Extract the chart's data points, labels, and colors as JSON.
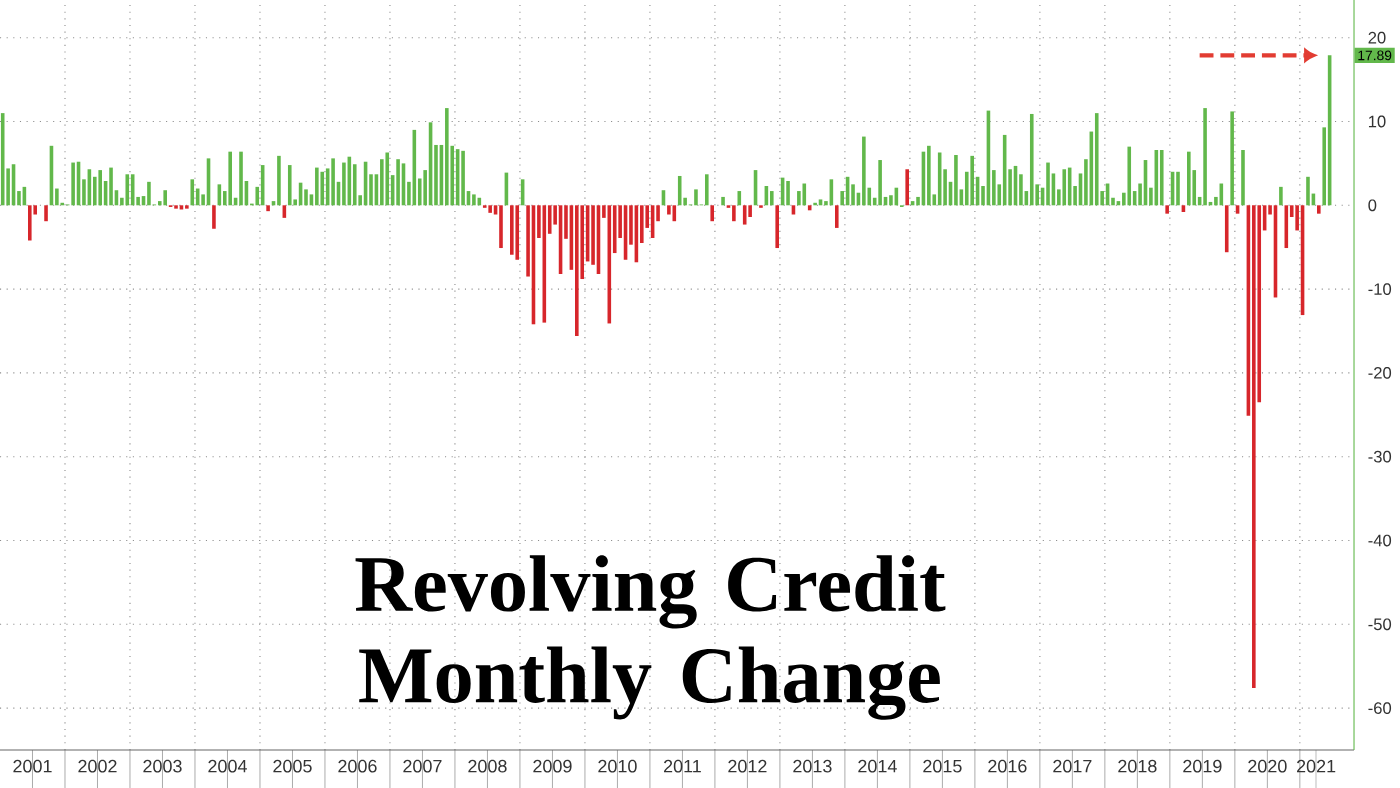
{
  "chart_data": {
    "type": "bar",
    "title": "Revolving Credit Monthly Change",
    "x": [
      "2001-01",
      "2001-02",
      "2001-03",
      "2001-04",
      "2001-05",
      "2001-06",
      "2001-07",
      "2001-08",
      "2001-09",
      "2001-10",
      "2001-11",
      "2001-12",
      "2002-01",
      "2002-02",
      "2002-03",
      "2002-04",
      "2002-05",
      "2002-06",
      "2002-07",
      "2002-08",
      "2002-09",
      "2002-10",
      "2002-11",
      "2002-12",
      "2003-01",
      "2003-02",
      "2003-03",
      "2003-04",
      "2003-05",
      "2003-06",
      "2003-07",
      "2003-08",
      "2003-09",
      "2003-10",
      "2003-11",
      "2003-12",
      "2004-01",
      "2004-02",
      "2004-03",
      "2004-04",
      "2004-05",
      "2004-06",
      "2004-07",
      "2004-08",
      "2004-09",
      "2004-10",
      "2004-11",
      "2004-12",
      "2005-01",
      "2005-02",
      "2005-03",
      "2005-04",
      "2005-05",
      "2005-06",
      "2005-07",
      "2005-08",
      "2005-09",
      "2005-10",
      "2005-11",
      "2005-12",
      "2006-01",
      "2006-02",
      "2006-03",
      "2006-04",
      "2006-05",
      "2006-06",
      "2006-07",
      "2006-08",
      "2006-09",
      "2006-10",
      "2006-11",
      "2006-12",
      "2007-01",
      "2007-02",
      "2007-03",
      "2007-04",
      "2007-05",
      "2007-06",
      "2007-07",
      "2007-08",
      "2007-09",
      "2007-10",
      "2007-11",
      "2007-12",
      "2008-01",
      "2008-02",
      "2008-03",
      "2008-04",
      "2008-05",
      "2008-06",
      "2008-07",
      "2008-08",
      "2008-09",
      "2008-10",
      "2008-11",
      "2008-12",
      "2009-01",
      "2009-02",
      "2009-03",
      "2009-04",
      "2009-05",
      "2009-06",
      "2009-07",
      "2009-08",
      "2009-09",
      "2009-10",
      "2009-11",
      "2009-12",
      "2010-01",
      "2010-02",
      "2010-03",
      "2010-04",
      "2010-05",
      "2010-06",
      "2010-07",
      "2010-08",
      "2010-09",
      "2010-10",
      "2010-11",
      "2010-12",
      "2011-01",
      "2011-02",
      "2011-03",
      "2011-04",
      "2011-05",
      "2011-06",
      "2011-07",
      "2011-08",
      "2011-09",
      "2011-10",
      "2011-11",
      "2011-12",
      "2012-01",
      "2012-02",
      "2012-03",
      "2012-04",
      "2012-05",
      "2012-06",
      "2012-07",
      "2012-08",
      "2012-09",
      "2012-10",
      "2012-11",
      "2012-12",
      "2013-01",
      "2013-02",
      "2013-03",
      "2013-04",
      "2013-05",
      "2013-06",
      "2013-07",
      "2013-08",
      "2013-09",
      "2013-10",
      "2013-11",
      "2013-12",
      "2014-01",
      "2014-02",
      "2014-03",
      "2014-04",
      "2014-05",
      "2014-06",
      "2014-07",
      "2014-08",
      "2014-09",
      "2014-10",
      "2014-11",
      "2014-12",
      "2015-01",
      "2015-02",
      "2015-03",
      "2015-04",
      "2015-05",
      "2015-06",
      "2015-07",
      "2015-08",
      "2015-09",
      "2015-10",
      "2015-11",
      "2015-12",
      "2016-01",
      "2016-02",
      "2016-03",
      "2016-04",
      "2016-05",
      "2016-06",
      "2016-07",
      "2016-08",
      "2016-09",
      "2016-10",
      "2016-11",
      "2016-12",
      "2017-01",
      "2017-02",
      "2017-03",
      "2017-04",
      "2017-05",
      "2017-06",
      "2017-07",
      "2017-08",
      "2017-09",
      "2017-10",
      "2017-11",
      "2017-12",
      "2018-01",
      "2018-02",
      "2018-03",
      "2018-04",
      "2018-05",
      "2018-06",
      "2018-07",
      "2018-08",
      "2018-09",
      "2018-10",
      "2018-11",
      "2018-12",
      "2019-01",
      "2019-02",
      "2019-03",
      "2019-04",
      "2019-05",
      "2019-06",
      "2019-07",
      "2019-08",
      "2019-09",
      "2019-10",
      "2019-11",
      "2019-12",
      "2020-01",
      "2020-02",
      "2020-03",
      "2020-04",
      "2020-05",
      "2020-06",
      "2020-07",
      "2020-08",
      "2020-09",
      "2020-10",
      "2020-11",
      "2020-12",
      "2021-01",
      "2021-02",
      "2021-03",
      "2021-04",
      "2021-05",
      "2021-06"
    ],
    "values": [
      11,
      4.4,
      4.9,
      1.7,
      2.2,
      -4.2,
      -1.1,
      null,
      -1.9,
      7.1,
      2,
      0.3,
      0.1,
      5.1,
      5.2,
      3.1,
      4.3,
      3.4,
      4.2,
      2.9,
      4.5,
      1.8,
      0.9,
      3.7,
      3.7,
      1,
      1.1,
      2.8,
      0.1,
      0.5,
      1.8,
      -0.2,
      -0.4,
      -0.5,
      -0.4,
      3.1,
      2,
      1.3,
      5.6,
      -2.8,
      2.5,
      1.7,
      6.4,
      0.9,
      6.4,
      2.9,
      0.2,
      2.2,
      4.8,
      -0.7,
      0.5,
      5.9,
      -1.5,
      4.8,
      0.7,
      2.7,
      1.9,
      1.3,
      4.5,
      4,
      4.4,
      5.6,
      2.8,
      5.1,
      5.8,
      4.9,
      1.2,
      5.2,
      3.7,
      3.7,
      5.5,
      6.3,
      3.6,
      5.5,
      5,
      2.8,
      9,
      3.2,
      4.2,
      9.9,
      7.2,
      7.2,
      11.6,
      7.1,
      6.7,
      6.5,
      1.7,
      1.3,
      0.9,
      -0.3,
      -0.9,
      -1.1,
      -5.1,
      3.9,
      -5.9,
      -6.5,
      3.1,
      -8.5,
      -14.2,
      -3.9,
      -14,
      -3.4,
      -2.3,
      -8.2,
      -4,
      -7.7,
      -15.6,
      -8.8,
      -6.7,
      -7.1,
      -8.2,
      -1.5,
      -14.1,
      -5.7,
      -3.9,
      -6.5,
      -4.7,
      -6.8,
      -4.5,
      -2.7,
      -3.9,
      -1.9,
      1.8,
      -1.1,
      -1.9,
      3.5,
      0.9,
      0.1,
      1.9,
      0.1,
      3.7,
      -1.9,
      null,
      1,
      -0.3,
      -1.9,
      1.7,
      -2.3,
      -1.4,
      4.2,
      -0.3,
      2.3,
      1.7,
      -5.1,
      3.3,
      2.9,
      -1.1,
      1.7,
      2.6,
      -0.6,
      0.3,
      0.7,
      0.5,
      3.1,
      -2.7,
      1.7,
      3.4,
      2.5,
      1.5,
      8.2,
      2.1,
      0.9,
      5.4,
      1,
      1.2,
      2.1,
      -0.2,
      4.3,
      0.5,
      1,
      6.4,
      7.1,
      1.3,
      6.3,
      4.3,
      2.8,
      6,
      1.9,
      4,
      5.9,
      3.4,
      2.3,
      11.3,
      4.2,
      2.5,
      8.4,
      4.3,
      4.7,
      3.7,
      1.7,
      10.9,
      2.5,
      2.1,
      5.1,
      3.8,
      1.9,
      4.3,
      4.5,
      2.3,
      3.8,
      5.5,
      8.8,
      11,
      1.7,
      2.6,
      0.9,
      0.5,
      1.5,
      7,
      1.7,
      2.6,
      5.4,
      2.1,
      6.6,
      6.6,
      -1,
      4,
      4,
      -0.8,
      6.4,
      4.2,
      1,
      11.6,
      0.4,
      1,
      2.6,
      -5.6,
      11.2,
      -1,
      6.6,
      -25.1,
      -57.6,
      -23.5,
      -3,
      -1.1,
      -11,
      2.2,
      -5.1,
      -1.4,
      -3,
      -13.1,
      3.4,
      1.4,
      -1,
      9.3,
      17.89
    ],
    "colors": [
      "#62b84b",
      "#62b84b",
      "#62b84b",
      "#62b84b",
      "#62b84b",
      "#d7262b",
      "#d7262b",
      "#62b84b",
      "#d7262b",
      "#62b84b",
      "#62b84b",
      "#62b84b",
      "#62b84b",
      "#62b84b",
      "#62b84b",
      "#62b84b",
      "#62b84b",
      "#62b84b",
      "#62b84b",
      "#62b84b",
      "#62b84b",
      "#62b84b",
      "#62b84b",
      "#62b84b",
      "#62b84b",
      "#62b84b",
      "#62b84b",
      "#62b84b",
      "#62b84b",
      "#62b84b",
      "#62b84b",
      "#d7262b",
      "#d7262b",
      "#d7262b",
      "#d7262b",
      "#62b84b",
      "#62b84b",
      "#62b84b",
      "#62b84b",
      "#d7262b",
      "#62b84b",
      "#62b84b",
      "#62b84b",
      "#62b84b",
      "#62b84b",
      "#62b84b",
      "#62b84b",
      "#62b84b",
      "#62b84b",
      "#d7262b",
      "#62b84b",
      "#62b84b",
      "#d7262b",
      "#62b84b",
      "#62b84b",
      "#62b84b",
      "#62b84b",
      "#62b84b",
      "#62b84b",
      "#62b84b",
      "#62b84b",
      "#62b84b",
      "#62b84b",
      "#62b84b",
      "#62b84b",
      "#62b84b",
      "#62b84b",
      "#62b84b",
      "#62b84b",
      "#62b84b",
      "#62b84b",
      "#62b84b",
      "#62b84b",
      "#62b84b",
      "#62b84b",
      "#62b84b",
      "#62b84b",
      "#62b84b",
      "#62b84b",
      "#62b84b",
      "#62b84b",
      "#62b84b",
      "#62b84b",
      "#62b84b",
      "#62b84b",
      "#62b84b",
      "#62b84b",
      "#62b84b",
      "#62b84b",
      "#d7262b",
      "#d7262b",
      "#d7262b",
      "#d7262b",
      "#62b84b",
      "#d7262b",
      "#d7262b",
      "#62b84b",
      "#d7262b",
      "#d7262b",
      "#d7262b",
      "#d7262b",
      "#d7262b",
      "#d7262b",
      "#d7262b",
      "#d7262b",
      "#d7262b",
      "#d7262b",
      "#d7262b",
      "#d7262b",
      "#d7262b",
      "#d7262b",
      "#d7262b",
      "#d7262b",
      "#d7262b",
      "#d7262b",
      "#d7262b",
      "#d7262b",
      "#d7262b",
      "#d7262b",
      "#d7262b",
      "#d7262b",
      "#d7262b",
      "#62b84b",
      "#d7262b",
      "#d7262b",
      "#62b84b",
      "#62b84b",
      "#62b84b",
      "#62b84b",
      "#62b84b",
      "#62b84b",
      "#d7262b",
      "#62b84b",
      "#62b84b",
      "#d7262b",
      "#d7262b",
      "#62b84b",
      "#d7262b",
      "#d7262b",
      "#62b84b",
      "#d7262b",
      "#62b84b",
      "#62b84b",
      "#d7262b",
      "#62b84b",
      "#62b84b",
      "#d7262b",
      "#62b84b",
      "#62b84b",
      "#d7262b",
      "#62b84b",
      "#62b84b",
      "#62b84b",
      "#62b84b",
      "#d7262b",
      "#62b84b",
      "#62b84b",
      "#62b84b",
      "#62b84b",
      "#62b84b",
      "#62b84b",
      "#62b84b",
      "#62b84b",
      "#62b84b",
      "#62b84b",
      "#62b84b",
      "#62b84b",
      "#d7262b",
      "#62b84b",
      "#62b84b",
      "#62b84b",
      "#62b84b",
      "#62b84b",
      "#62b84b",
      "#62b84b",
      "#62b84b",
      "#62b84b",
      "#62b84b",
      "#62b84b",
      "#62b84b",
      "#62b84b",
      "#62b84b",
      "#62b84b",
      "#62b84b",
      "#62b84b",
      "#62b84b",
      "#62b84b",
      "#62b84b",
      "#62b84b",
      "#62b84b",
      "#62b84b",
      "#62b84b",
      "#62b84b",
      "#62b84b",
      "#62b84b",
      "#62b84b",
      "#62b84b",
      "#62b84b",
      "#62b84b",
      "#62b84b",
      "#62b84b",
      "#62b84b",
      "#62b84b",
      "#62b84b",
      "#62b84b",
      "#62b84b",
      "#62b84b",
      "#62b84b",
      "#62b84b",
      "#62b84b",
      "#62b84b",
      "#62b84b",
      "#62b84b",
      "#62b84b",
      "#62b84b",
      "#d7262b",
      "#62b84b",
      "#62b84b",
      "#d7262b",
      "#62b84b",
      "#62b84b",
      "#62b84b",
      "#62b84b",
      "#62b84b",
      "#62b84b",
      "#62b84b",
      "#d7262b",
      "#62b84b",
      "#d7262b",
      "#62b84b",
      "#d7262b",
      "#d7262b",
      "#d7262b",
      "#d7262b",
      "#d7262b",
      "#d7262b",
      "#62b84b",
      "#d7262b",
      "#d7262b",
      "#d7262b",
      "#d7262b",
      "#62b84b",
      "#62b84b",
      "#d7262b",
      "#62b84b",
      "#62b84b"
    ],
    "xlim": [
      "2001-01",
      "2021-11"
    ],
    "xticks": [
      {
        "value": "2001-07",
        "label": "2001"
      },
      {
        "value": "2002-07",
        "label": "2002"
      },
      {
        "value": "2003-07",
        "label": "2003"
      },
      {
        "value": "2004-07",
        "label": "2004"
      },
      {
        "value": "2005-07",
        "label": "2005"
      },
      {
        "value": "2006-07",
        "label": "2006"
      },
      {
        "value": "2007-07",
        "label": "2007"
      },
      {
        "value": "2008-07",
        "label": "2008"
      },
      {
        "value": "2009-07",
        "label": "2009"
      },
      {
        "value": "2010-07",
        "label": "2010"
      },
      {
        "value": "2011-07",
        "label": "2011"
      },
      {
        "value": "2012-07",
        "label": "2012"
      },
      {
        "value": "2013-07",
        "label": "2013"
      },
      {
        "value": "2014-07",
        "label": "2014"
      },
      {
        "value": "2015-07",
        "label": "2015"
      },
      {
        "value": "2016-07",
        "label": "2016"
      },
      {
        "value": "2017-07",
        "label": "2017"
      },
      {
        "value": "2018-07",
        "label": "2018"
      },
      {
        "value": "2019-07",
        "label": "2019"
      },
      {
        "value": "2020-07",
        "label": "2020"
      },
      {
        "value": "2021-04",
        "label": "2021"
      },
      {
        "value": "2002",
        "label": null
      },
      {
        "value": "2003",
        "label": null
      },
      {
        "value": "2004",
        "label": null
      },
      {
        "value": "2005",
        "label": null
      },
      {
        "value": "2006",
        "label": null
      },
      {
        "value": "2007",
        "label": null
      },
      {
        "value": "2008",
        "label": null
      },
      {
        "value": "2009",
        "label": null
      },
      {
        "value": "2010",
        "label": null
      },
      {
        "value": "2011",
        "label": null
      },
      {
        "value": "2012",
        "label": null
      },
      {
        "value": "2013",
        "label": null
      },
      {
        "value": "2014",
        "label": null
      },
      {
        "value": "2015",
        "label": null
      },
      {
        "value": "2016",
        "label": null
      },
      {
        "value": "2017",
        "label": null
      },
      {
        "value": "2018",
        "label": null
      },
      {
        "value": "2019",
        "label": null
      },
      {
        "value": "2020",
        "label": null
      },
      {
        "value": "2021",
        "label": null
      }
    ],
    "ylim": [
      -65,
      24.5
    ],
    "yticks": [
      -60,
      -50,
      -40,
      -30,
      -20,
      -10,
      0,
      10,
      20
    ],
    "grid": true,
    "annotations": [
      {
        "text": "17.89",
        "x": "2021-06",
        "y": 17.89
      }
    ]
  }
}
